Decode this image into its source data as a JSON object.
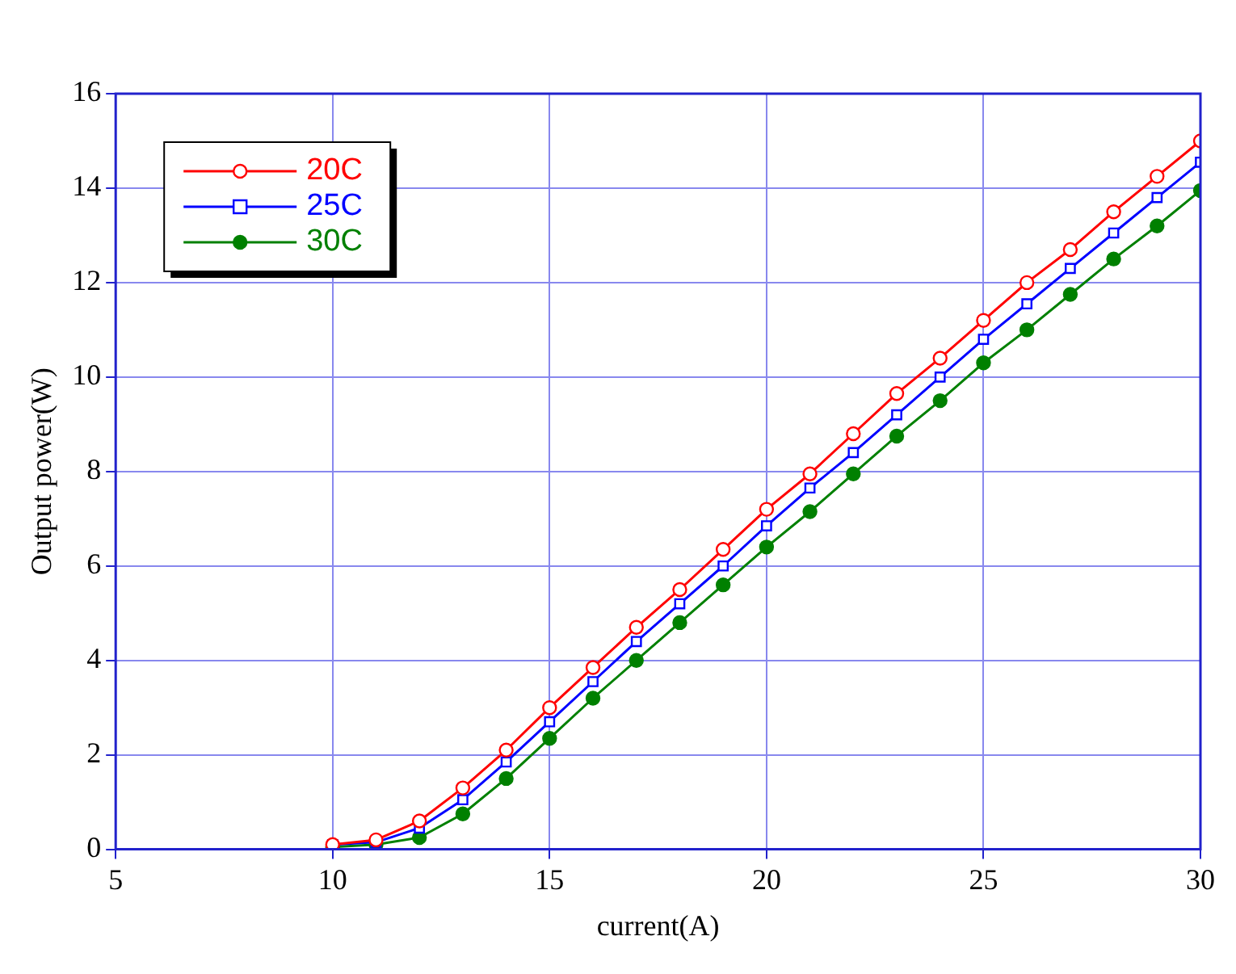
{
  "chart_data": {
    "type": "line",
    "xlabel": "current(A)",
    "ylabel": "Output power(W)",
    "x": [
      10,
      11,
      12,
      13,
      14,
      15,
      16,
      17,
      18,
      19,
      20,
      21,
      22,
      23,
      24,
      25,
      26,
      27,
      28,
      29,
      30
    ],
    "series": [
      {
        "name": "20C",
        "color": "#ff0000",
        "marker": "circle",
        "values": [
          0.1,
          0.2,
          0.6,
          1.3,
          2.1,
          3.0,
          3.85,
          4.7,
          5.5,
          6.35,
          7.2,
          7.95,
          8.8,
          9.65,
          10.4,
          11.2,
          12.0,
          12.7,
          13.5,
          14.25,
          15.0
        ]
      },
      {
        "name": "25C",
        "color": "#0000ff",
        "marker": "square",
        "values": [
          0.1,
          0.15,
          0.45,
          1.05,
          1.85,
          2.7,
          3.55,
          4.4,
          5.2,
          6.0,
          6.85,
          7.65,
          8.4,
          9.2,
          10.0,
          10.8,
          11.55,
          12.3,
          13.05,
          13.8,
          14.55
        ]
      },
      {
        "name": "30C",
        "color": "#008000",
        "marker": "circle",
        "values": [
          0.05,
          0.1,
          0.25,
          0.75,
          1.5,
          2.35,
          3.2,
          4.0,
          4.8,
          5.6,
          6.4,
          7.15,
          7.95,
          8.75,
          9.5,
          10.3,
          11.0,
          11.75,
          12.5,
          13.2,
          13.95
        ]
      }
    ],
    "xlim": [
      5,
      30
    ],
    "xticks": [
      5,
      10,
      15,
      20,
      25,
      30
    ],
    "ylim": [
      0,
      16
    ],
    "yticks": [
      0,
      2,
      4,
      6,
      8,
      10,
      12,
      14,
      16
    ],
    "grid": true,
    "legend": "top left",
    "line_style": "solid"
  }
}
